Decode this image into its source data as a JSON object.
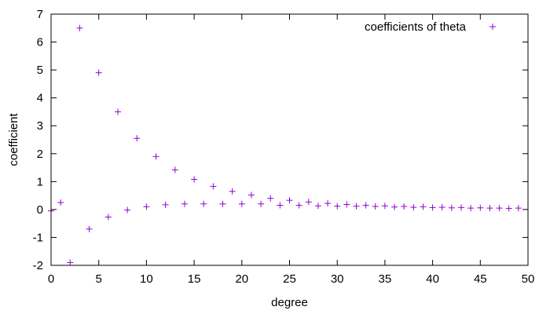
{
  "chart_data": {
    "type": "scatter",
    "title": "",
    "xlabel": "degree",
    "ylabel": "coefficient",
    "xlim": [
      0,
      50
    ],
    "ylim": [
      -2,
      7
    ],
    "x_ticks": [
      0,
      5,
      10,
      15,
      20,
      25,
      30,
      35,
      40,
      45,
      50
    ],
    "y_ticks": [
      -2,
      -1,
      0,
      1,
      2,
      3,
      4,
      5,
      6,
      7
    ],
    "grid": false,
    "legend_position": "top-right",
    "marker": "plus",
    "color": "#9400d3",
    "series": [
      {
        "name": "coefficients of theta",
        "x": [
          0,
          1,
          2,
          3,
          4,
          5,
          6,
          7,
          8,
          9,
          10,
          11,
          12,
          13,
          14,
          15,
          16,
          17,
          18,
          19,
          20,
          21,
          22,
          23,
          24,
          25,
          26,
          27,
          28,
          29,
          30,
          31,
          32,
          33,
          34,
          35,
          36,
          37,
          38,
          39,
          40,
          41,
          42,
          43,
          44,
          45,
          46,
          47,
          48,
          49
        ],
        "y": [
          -0.05,
          0.25,
          -1.9,
          6.5,
          -0.7,
          4.9,
          -0.27,
          3.5,
          -0.02,
          2.55,
          0.1,
          1.9,
          0.17,
          1.42,
          0.2,
          1.08,
          0.2,
          0.83,
          0.2,
          0.65,
          0.2,
          0.52,
          0.2,
          0.4,
          0.15,
          0.33,
          0.15,
          0.27,
          0.13,
          0.22,
          0.12,
          0.18,
          0.12,
          0.15,
          0.11,
          0.13,
          0.09,
          0.11,
          0.08,
          0.1,
          0.07,
          0.08,
          0.06,
          0.07,
          0.05,
          0.06,
          0.05,
          0.05,
          0.04,
          0.05
        ]
      }
    ]
  }
}
